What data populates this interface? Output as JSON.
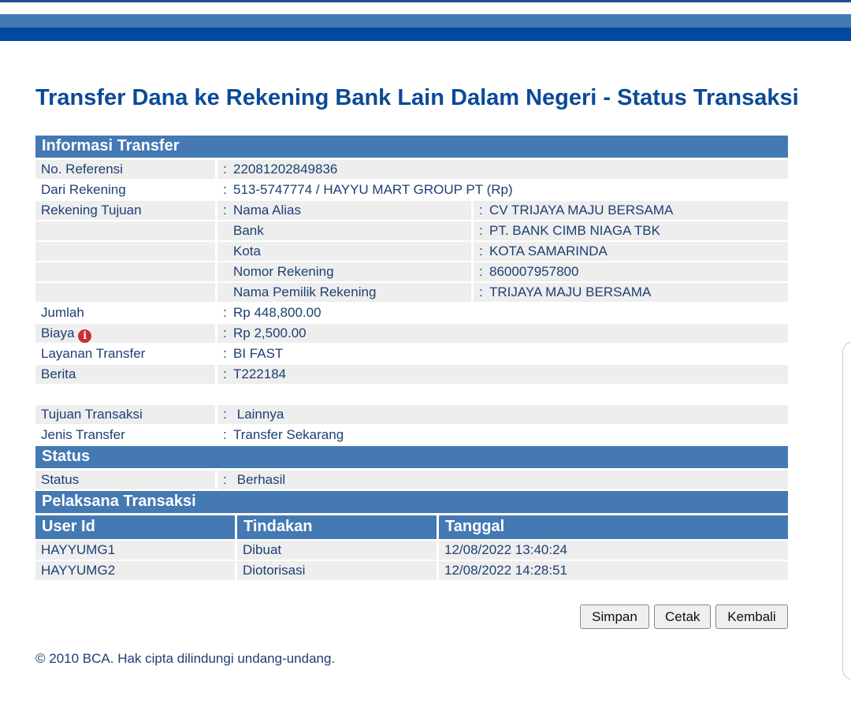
{
  "title": "Transfer Dana ke Rekening Bank Lain Dalam Negeri - Status Transaksi",
  "info": {
    "header": "Informasi Transfer",
    "no_referensi": {
      "label": "No. Referensi",
      "value": "22081202849836"
    },
    "dari_rekening": {
      "label": "Dari Rekening",
      "value": "513-5747774 / HAYYU MART GROUP PT  (Rp)"
    },
    "rekening_tujuan": {
      "label": "Rekening Tujuan",
      "items": [
        {
          "label": "Nama Alias",
          "value": "CV TRIJAYA MAJU BERSAMA"
        },
        {
          "label": "Bank",
          "value": "PT. BANK CIMB NIAGA TBK"
        },
        {
          "label": "Kota",
          "value": "KOTA SAMARINDA"
        },
        {
          "label": "Nomor Rekening",
          "value": "860007957800"
        },
        {
          "label": "Nama Pemilik Rekening",
          "value": "TRIJAYA MAJU BERSAMA"
        }
      ]
    },
    "jumlah": {
      "label": "Jumlah",
      "value": "Rp 448,800.00"
    },
    "biaya": {
      "label": "Biaya",
      "value": "Rp 2,500.00",
      "icon": "info-icon",
      "icon_color": "#c9302c"
    },
    "layanan": {
      "label": "Layanan Transfer",
      "value": "BI FAST"
    },
    "berita": {
      "label": "Berita",
      "value": "T222184"
    },
    "tujuan": {
      "label": "Tujuan Transaksi",
      "value": "Lainnya"
    },
    "jenis": {
      "label": "Jenis Transfer",
      "value": "Transfer Sekarang"
    }
  },
  "status": {
    "header": "Status",
    "label": "Status",
    "value": "Berhasil"
  },
  "pelaksana": {
    "header": "Pelaksana Transaksi",
    "columns": [
      "User Id",
      "Tindakan",
      "Tanggal"
    ],
    "rows": [
      [
        "HAYYUMG1",
        "Dibuat",
        "12/08/2022 13:40:24"
      ],
      [
        "HAYYUMG2",
        "Diotorisasi",
        "12/08/2022 14:28:51"
      ]
    ]
  },
  "buttons": {
    "simpan": "Simpan",
    "cetak": "Cetak",
    "kembali": "Kembali"
  },
  "footer": "©  2010 BCA. Hak cipta dilindungi undang-undang.",
  "colors": {
    "header": "#4479b3",
    "title": "#0b4a98",
    "band": "#0049a0"
  }
}
